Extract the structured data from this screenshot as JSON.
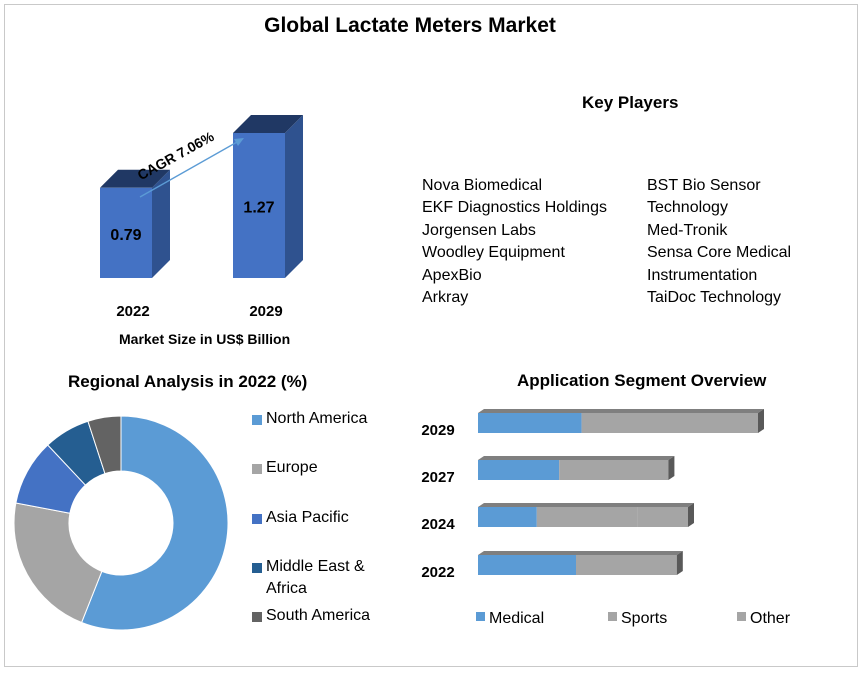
{
  "title": "Global Lactate Meters Market",
  "key_players": {
    "title": "Key Players",
    "col1": [
      "Nova Biomedical",
      "EKF Diagnostics Holdings",
      "Jorgensen Labs",
      "Woodley Equipment",
      "ApexBio",
      "Arkray"
    ],
    "col2": [
      "BST Bio Sensor",
      "Technology",
      "Med-Tronik",
      "Sensa Core Medical",
      "Instrumentation",
      "TaiDoc Technology"
    ]
  },
  "colors": {
    "blue_front": "#4472C4",
    "blue_side": "#2F528F",
    "blue_top": "#203864",
    "light_blue": "#5B9BD5",
    "gray": "#A5A5A5",
    "dark_blue": "#255E91",
    "dark_gray": "#636363",
    "arrow": "#5B9BD5"
  },
  "chart_data": [
    {
      "type": "bar",
      "title": "",
      "categories": [
        "2022",
        "2029"
      ],
      "values": [
        0.79,
        1.27
      ],
      "value_labels": [
        "0.79",
        "1.27"
      ],
      "xlabel": "Market Size in US$ Billion",
      "annotation": "CAGR 7.06%"
    },
    {
      "type": "pie",
      "title": "Regional Analysis in 2022 (%)",
      "labels": [
        "North America",
        "Europe",
        "Asia Pacific",
        "Middle East & Africa",
        "South America"
      ],
      "values": [
        56,
        22,
        10,
        7,
        5
      ],
      "legend_lines": [
        [
          "North America"
        ],
        [
          "Europe"
        ],
        [
          "Asia Pacific"
        ],
        [
          "Middle East &",
          "Africa"
        ],
        [
          "South America"
        ]
      ],
      "donut": true
    },
    {
      "type": "bar",
      "orientation": "horizontal",
      "stacked": true,
      "title": "Application Segment Overview",
      "categories": [
        "2029",
        "2027",
        "2024",
        "2022"
      ],
      "series": [
        {
          "name": "Medical",
          "values": [
            0.37,
            0.29,
            0.21,
            0.35
          ]
        },
        {
          "name": "Sports",
          "values": [
            0.63,
            0.39,
            0.36,
            0.36
          ]
        },
        {
          "name": "Other",
          "values": [
            0.0,
            0.0,
            0.18,
            0.0
          ]
        }
      ]
    }
  ]
}
